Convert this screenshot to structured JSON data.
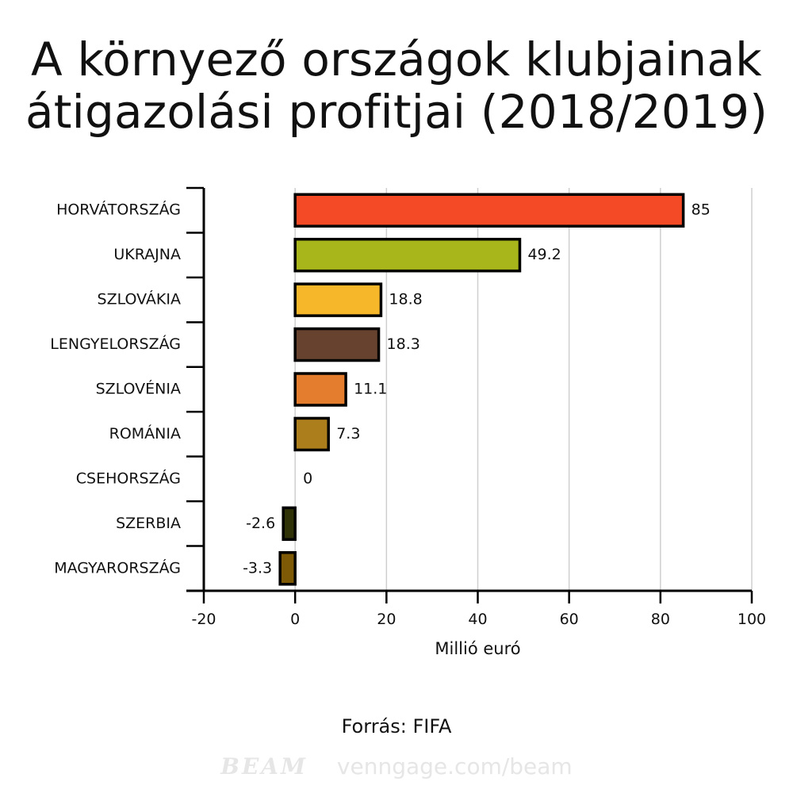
{
  "title": {
    "line1": "A környező országok klubjainak",
    "line2": "átigazolási profitjai (2018/2019)"
  },
  "source": "Forrás: FIFA",
  "watermark": {
    "brand": "BEAM",
    "url": "venngage.com/beam"
  },
  "chart_data": {
    "type": "bar",
    "orientation": "horizontal",
    "categories": [
      "HORVÁTORSZÁG",
      "UKRAJNA",
      "SZLOVÁKIA",
      "LENGYELORSZÁG",
      "SZLOVÉNIA",
      "ROMÁNIA",
      "CSEHORSZÁG",
      "SZERBIA",
      "MAGYARORSZÁG"
    ],
    "values": [
      85,
      49.2,
      18.8,
      18.3,
      11.1,
      7.3,
      0,
      -2.6,
      -3.3
    ],
    "data_labels": [
      "85",
      "49.2",
      "18.8",
      "18.3",
      "11.1",
      "7.3",
      "0",
      "-2.6",
      "-3.3"
    ],
    "colors": [
      "#f44b26",
      "#a8b61c",
      "#f6b82a",
      "#67432f",
      "#e57d2e",
      "#ad7f1c",
      "#8a8a8a",
      "#2e3206",
      "#7e5a06"
    ],
    "xlabel": "Millió euró",
    "ylabel": "",
    "xlim": [
      -20,
      100
    ],
    "xticks": [
      -20,
      0,
      20,
      40,
      60,
      80,
      100
    ],
    "grid": true,
    "legend": "none"
  }
}
